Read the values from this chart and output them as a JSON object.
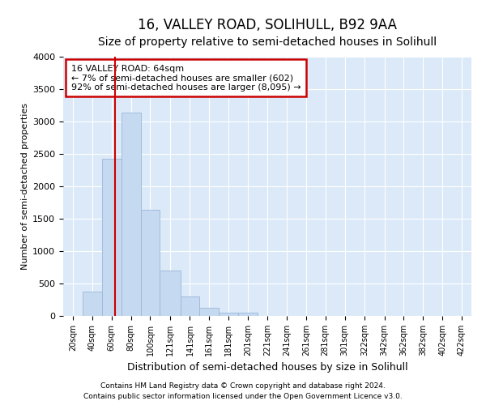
{
  "title": "16, VALLEY ROAD, SOLIHULL, B92 9AA",
  "subtitle": "Size of property relative to semi-detached houses in Solihull",
  "xlabel": "Distribution of semi-detached houses by size in Solihull",
  "ylabel": "Number of semi-detached properties",
  "footnote1": "Contains HM Land Registry data © Crown copyright and database right 2024.",
  "footnote2": "Contains public sector information licensed under the Open Government Licence v3.0.",
  "annotation_title": "16 VALLEY ROAD: 64sqm",
  "annotation_line1": "← 7% of semi-detached houses are smaller (602)",
  "annotation_line2": "92% of semi-detached houses are larger (8,095) →",
  "property_size": 64,
  "categories": [
    "20sqm",
    "40sqm",
    "60sqm",
    "80sqm",
    "100sqm",
    "121sqm",
    "141sqm",
    "161sqm",
    "181sqm",
    "201sqm",
    "221sqm",
    "241sqm",
    "261sqm",
    "281sqm",
    "301sqm",
    "322sqm",
    "342sqm",
    "362sqm",
    "382sqm",
    "402sqm",
    "422sqm"
  ],
  "bin_edges": [
    10,
    30,
    50,
    70,
    90,
    110,
    131,
    151,
    171,
    191,
    211,
    231,
    251,
    271,
    291,
    311,
    332,
    352,
    372,
    392,
    412,
    432
  ],
  "bar_values": [
    0,
    380,
    2420,
    3140,
    1640,
    700,
    300,
    130,
    55,
    45,
    0,
    0,
    0,
    0,
    0,
    0,
    0,
    0,
    0,
    0,
    0
  ],
  "bar_color": "#c5d9f1",
  "bar_edgecolor": "#9ab8d8",
  "red_line_color": "#cc0000",
  "annotation_box_edgecolor": "#cc0000",
  "annotation_box_facecolor": "#ffffff",
  "background_color": "#dce9f8",
  "ylim": [
    0,
    4000
  ],
  "yticks": [
    0,
    500,
    1000,
    1500,
    2000,
    2500,
    3000,
    3500,
    4000
  ],
  "grid_color": "#ffffff",
  "title_fontsize": 12,
  "subtitle_fontsize": 10,
  "footnote_fontsize": 6.5,
  "xlabel_fontsize": 9,
  "ylabel_fontsize": 8
}
